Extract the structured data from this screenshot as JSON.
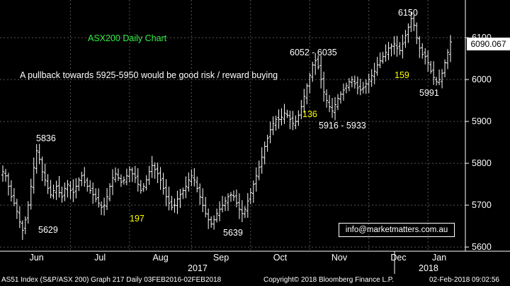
{
  "chart_data": {
    "type": "ohlc",
    "title": "ASX200 Daily Chart",
    "subtitle": "A pullback towards 5925-5950 would be good risk / reward buying",
    "ylim": [
      5590,
      6190
    ],
    "y_ticks": [
      5600,
      5700,
      5800,
      5900,
      6000,
      6100
    ],
    "x_ticks": [
      "Jun",
      "Jul",
      "Aug",
      "Sep",
      "Oct",
      "Nov",
      "Dec",
      "Jan"
    ],
    "x_years": [
      "2017",
      "2018"
    ],
    "grid": true,
    "series_color": "#ffffff",
    "current_price": "6090.067",
    "annotations": [
      {
        "text": "5836",
        "color": "#ffffff"
      },
      {
        "text": "5629",
        "color": "#ffffff"
      },
      {
        "text": "197",
        "color": "#ffff00"
      },
      {
        "text": "5639",
        "color": "#ffffff"
      },
      {
        "text": "6052 - 6035",
        "color": "#ffffff"
      },
      {
        "text": "136",
        "color": "#ffff00"
      },
      {
        "text": "5916 - 5933",
        "color": "#ffffff"
      },
      {
        "text": "6150",
        "color": "#ffffff"
      },
      {
        "text": "159",
        "color": "#ffff00"
      },
      {
        "text": "5991",
        "color": "#ffffff"
      }
    ],
    "close_path": [
      5780,
      5770,
      5745,
      5720,
      5705,
      5685,
      5660,
      5640,
      5665,
      5700,
      5745,
      5790,
      5830,
      5810,
      5780,
      5760,
      5740,
      5725,
      5735,
      5745,
      5730,
      5720,
      5740,
      5750,
      5735,
      5730,
      5745,
      5760,
      5770,
      5755,
      5745,
      5735,
      5725,
      5715,
      5705,
      5695,
      5700,
      5720,
      5745,
      5765,
      5775,
      5765,
      5755,
      5760,
      5770,
      5785,
      5775,
      5765,
      5750,
      5735,
      5745,
      5760,
      5780,
      5795,
      5785,
      5775,
      5760,
      5740,
      5720,
      5705,
      5695,
      5700,
      5715,
      5725,
      5735,
      5745,
      5760,
      5770,
      5760,
      5740,
      5720,
      5700,
      5680,
      5665,
      5655,
      5665,
      5680,
      5690,
      5700,
      5710,
      5720,
      5725,
      5720,
      5705,
      5690,
      5680,
      5690,
      5710,
      5730,
      5750,
      5770,
      5790,
      5815,
      5840,
      5860,
      5880,
      5895,
      5905,
      5905,
      5910,
      5920,
      5915,
      5905,
      5895,
      5900,
      5915,
      5935,
      5960,
      5985,
      6010,
      6035,
      6045,
      6030,
      6000,
      5970,
      5950,
      5935,
      5925,
      5940,
      5955,
      5965,
      5975,
      5985,
      5995,
      6000,
      5990,
      5980,
      5975,
      5980,
      5990,
      6000,
      6010,
      6020,
      6035,
      6045,
      6055,
      6065,
      6075,
      6080,
      6085,
      6075,
      6070,
      6085,
      6105,
      6125,
      6145,
      6130,
      6100,
      6075,
      6060,
      6055,
      6040,
      6020,
      6005,
      5995,
      6000,
      6015,
      6040,
      6065,
      6090
    ]
  },
  "contact": "info@marketmatters.com.au",
  "footer": {
    "left": "AS51 Index (S&P/ASX 200) Graph 217  Daily 03FEB2016-02FEB2018",
    "center": "Copyright© 2018 Bloomberg Finance L.P.",
    "right": "02-Feb-2018 09:02:56"
  }
}
